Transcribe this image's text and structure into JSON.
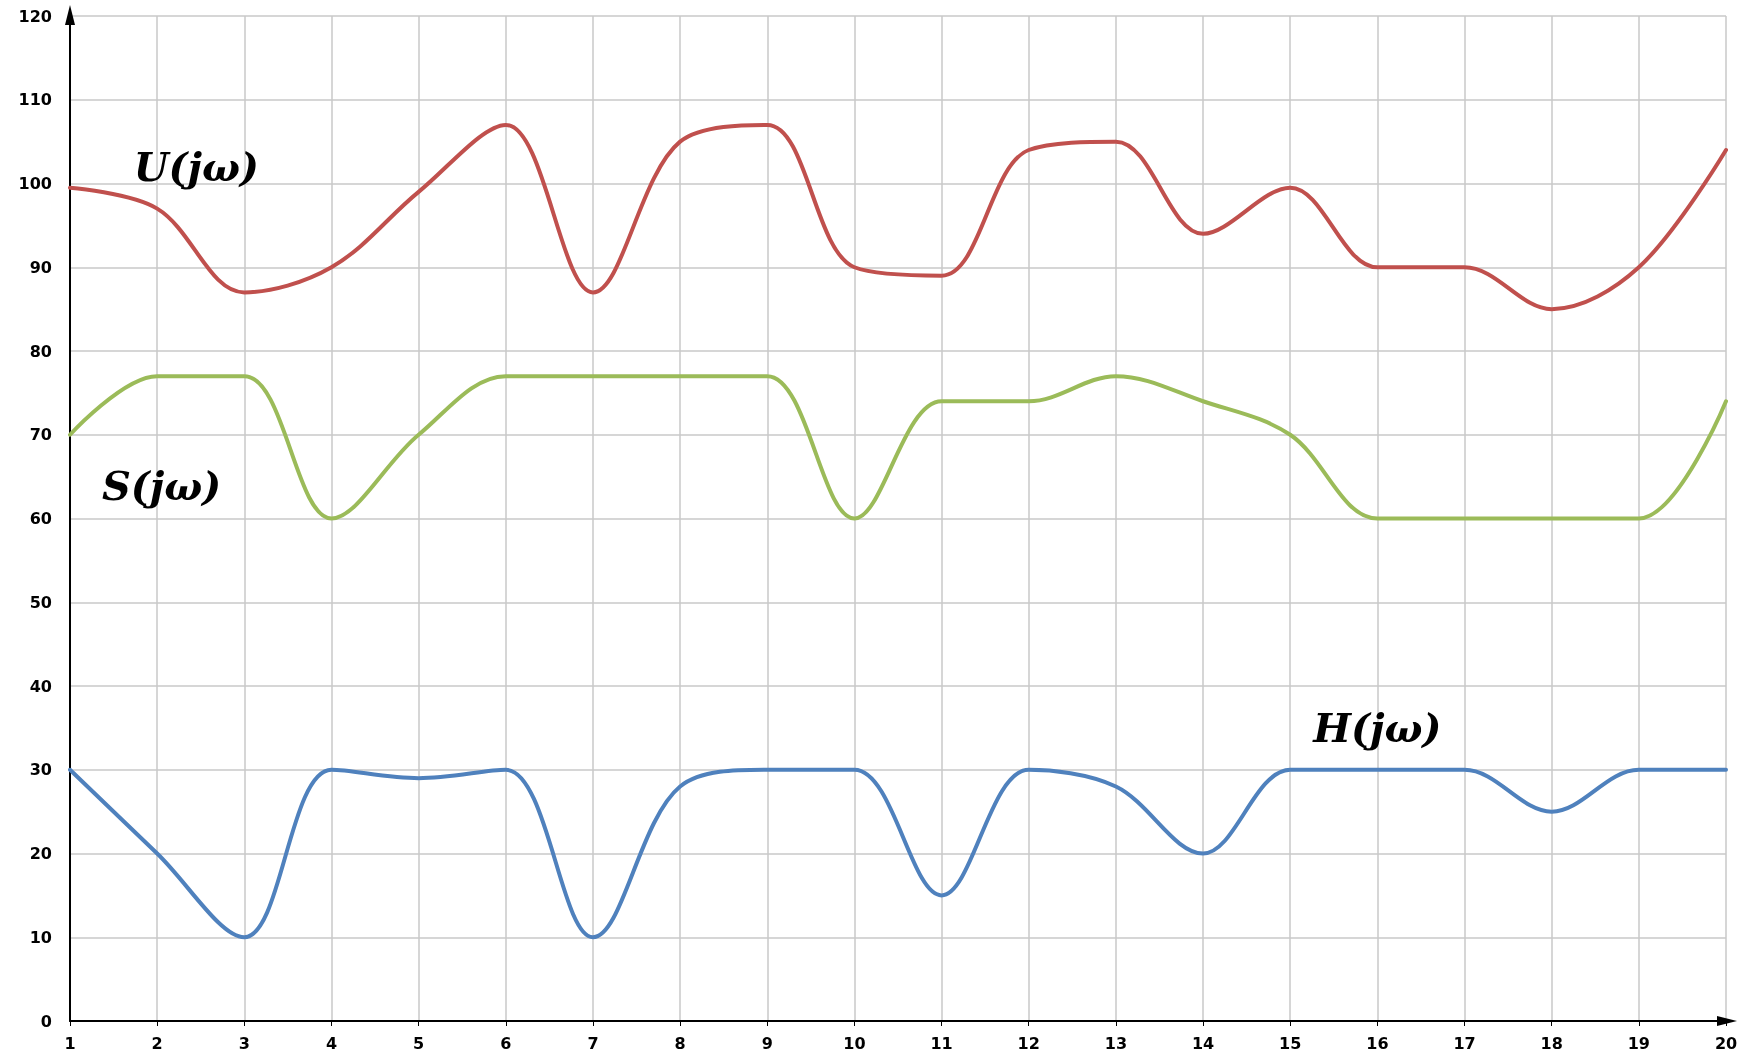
{
  "chart_data": {
    "type": "line",
    "x": [
      1,
      2,
      3,
      4,
      5,
      6,
      7,
      8,
      9,
      10,
      11,
      12,
      13,
      14,
      15,
      16,
      17,
      18,
      19,
      20
    ],
    "series": [
      {
        "name": "U(jω)",
        "color": "#c0504d",
        "values": [
          99.5,
          97,
          87,
          90,
          99,
          107,
          87,
          105,
          107,
          90,
          89,
          104,
          105,
          94,
          99.5,
          90,
          90,
          85,
          90,
          104
        ]
      },
      {
        "name": "S(jω)",
        "color": "#9bbb59",
        "values": [
          70,
          77,
          77,
          60,
          70,
          77,
          77,
          77,
          77,
          60,
          74,
          74,
          77,
          74,
          70,
          60,
          60,
          60,
          60,
          74
        ]
      },
      {
        "name": "H(jω)",
        "color": "#4f81bd",
        "values": [
          30,
          20,
          10,
          30,
          29,
          30,
          10,
          28,
          30,
          30,
          15,
          30,
          28,
          20,
          30,
          30,
          30,
          25,
          30,
          30
        ]
      }
    ],
    "xlim": [
      1,
      20
    ],
    "xticks": [
      1,
      2,
      3,
      4,
      5,
      6,
      7,
      8,
      9,
      10,
      11,
      12,
      13,
      14,
      15,
      16,
      17,
      18,
      19,
      20
    ],
    "ylim": [
      0,
      120
    ],
    "yticks": [
      0,
      10,
      20,
      30,
      40,
      50,
      60,
      70,
      80,
      90,
      100,
      110,
      120
    ],
    "grid": true,
    "legend": false,
    "marker": "none",
    "line_style": "solid"
  }
}
